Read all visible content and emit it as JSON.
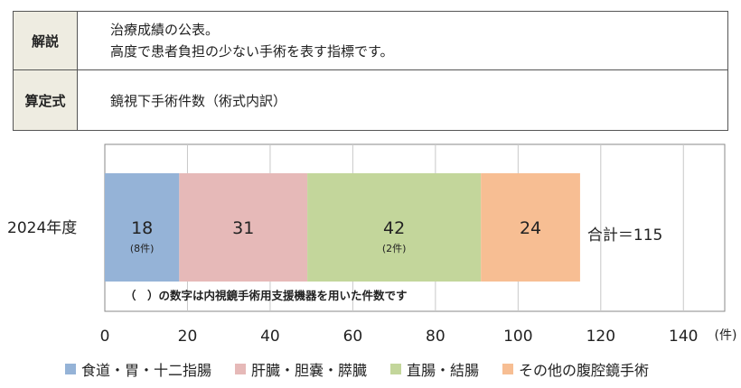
{
  "info": {
    "desc_label": "解説",
    "desc_lines": [
      "治療成績の公表。",
      "高度で患者負担の少ない手術を表す指標です。"
    ],
    "formula_label": "算定式",
    "formula_text": "鏡視下手術件数（術式内訳）"
  },
  "chart_data": {
    "type": "bar",
    "orientation": "horizontal",
    "stacked": true,
    "categories": [
      "2024年度"
    ],
    "series": [
      {
        "name": "食道・胃・十二指腸",
        "values": [
          18
        ],
        "sub_label": "(8件)",
        "color": "#95b3d7"
      },
      {
        "name": "肝臓・胆嚢・膵臓",
        "values": [
          31
        ],
        "sub_label": "",
        "color": "#e6b9b8"
      },
      {
        "name": "直腸・結腸",
        "values": [
          42
        ],
        "sub_label": "(2件)",
        "color": "#c3d69b"
      },
      {
        "name": "その他の腹腔鏡手術",
        "values": [
          24
        ],
        "sub_label": "",
        "color": "#f7be93"
      }
    ],
    "total_label": "合計＝115",
    "note": "（　）の数字は内視鏡手術用支援機器を用いた件数です",
    "xlim": [
      0,
      150
    ],
    "xticks": [
      0,
      20,
      40,
      60,
      80,
      100,
      120,
      140
    ],
    "x_unit": "(件)",
    "grid": true,
    "legend_position": "bottom"
  }
}
